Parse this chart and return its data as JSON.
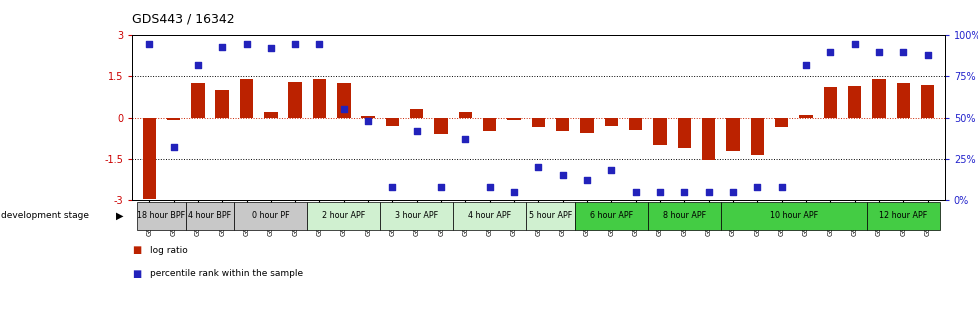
{
  "title": "GDS443 / 16342",
  "samples": [
    "GSM4585",
    "GSM4586",
    "GSM4587",
    "GSM4588",
    "GSM4589",
    "GSM4590",
    "GSM4591",
    "GSM4592",
    "GSM4593",
    "GSM4594",
    "GSM4595",
    "GSM4596",
    "GSM4597",
    "GSM4598",
    "GSM4599",
    "GSM4600",
    "GSM4601",
    "GSM4602",
    "GSM4603",
    "GSM4604",
    "GSM4605",
    "GSM4606",
    "GSM4607",
    "GSM4608",
    "GSM4609",
    "GSM4610",
    "GSM4611",
    "GSM4612",
    "GSM4613",
    "GSM4614",
    "GSM4615",
    "GSM4616",
    "GSM4617"
  ],
  "log_ratio": [
    -2.95,
    -0.08,
    1.25,
    1.0,
    1.4,
    0.2,
    1.3,
    1.4,
    1.25,
    0.05,
    -0.3,
    0.3,
    -0.6,
    0.2,
    -0.5,
    -0.1,
    -0.35,
    -0.5,
    -0.55,
    -0.3,
    -0.45,
    -1.0,
    -1.1,
    -1.55,
    -1.2,
    -1.35,
    -0.35,
    0.1,
    1.1,
    1.15,
    1.4,
    1.25,
    1.2
  ],
  "percentile": [
    95,
    32,
    82,
    93,
    95,
    92,
    95,
    95,
    55,
    48,
    8,
    42,
    8,
    37,
    8,
    5,
    20,
    15,
    12,
    18,
    5,
    5,
    5,
    5,
    5,
    8,
    8,
    82,
    90,
    95,
    90,
    90,
    88
  ],
  "stage_labels": [
    "18 hour BPF",
    "4 hour BPF",
    "0 hour PF",
    "2 hour APF",
    "3 hour APF",
    "4 hour APF",
    "5 hour APF",
    "6 hour APF",
    "8 hour APF",
    "10 hour APF",
    "12 hour APF"
  ],
  "stage_colors": [
    "#c8c8c8",
    "#c8c8c8",
    "#c8c8c8",
    "#d0f0d0",
    "#d0f0d0",
    "#d0f0d0",
    "#d0f0d0",
    "#44cc44",
    "#44cc44",
    "#44cc44",
    "#44cc44"
  ],
  "stage_starts": [
    0,
    2,
    4,
    7,
    10,
    13,
    16,
    18,
    21,
    24,
    30
  ],
  "stage_ends": [
    2,
    4,
    7,
    10,
    13,
    16,
    18,
    21,
    24,
    30,
    33
  ],
  "ylim": [
    -3.0,
    3.0
  ],
  "y_left_ticks": [
    -3,
    -1.5,
    0,
    1.5,
    3
  ],
  "y_right_ticks": [
    0,
    25,
    50,
    75,
    100
  ],
  "y_right_labels": [
    "0%",
    "25%",
    "50%",
    "75%",
    "100%"
  ],
  "dotted_lines": [
    1.5,
    -1.5
  ],
  "bar_color": "#bb2200",
  "dot_color": "#2222bb",
  "zero_line_color": "#cc2200",
  "bg_color": "#ffffff"
}
